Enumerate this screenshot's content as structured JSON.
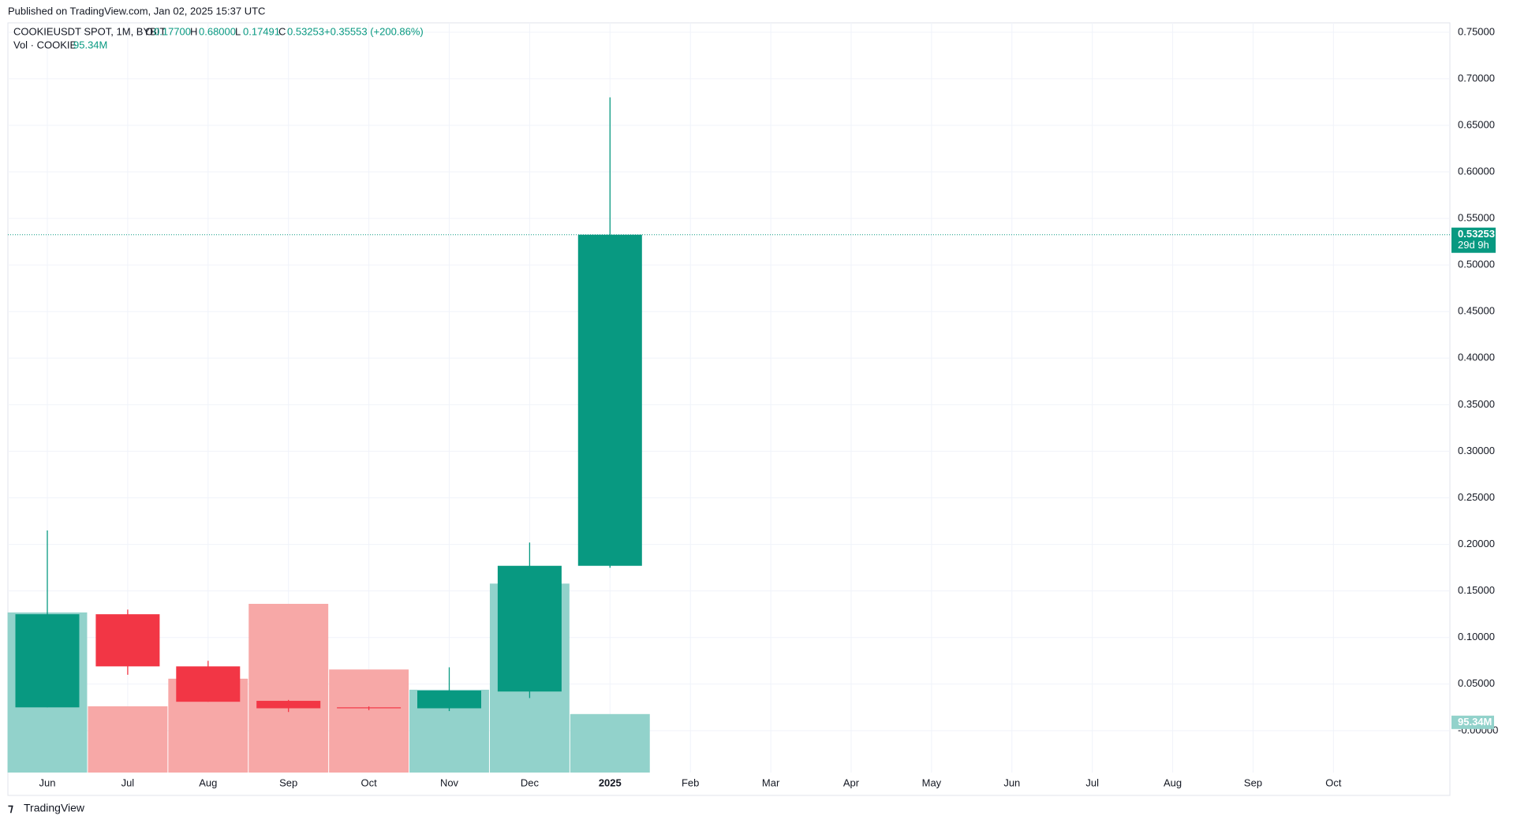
{
  "header": {
    "published": "Published on TradingView.com, Jan 02, 2025 15:37 UTC"
  },
  "legend": {
    "symbol": "COOKIEUSDT SPOT, 1M, BYBIT",
    "o_label": "O",
    "o": "0.17700",
    "h_label": "H",
    "h": "0.68000",
    "l_label": "L",
    "l": "0.17491",
    "c_label": "C",
    "c": "0.53253",
    "change": "+0.35553 (+200.86%)",
    "vol_name": "Vol · COOKIE",
    "vol": "95.34M"
  },
  "chart_data": {
    "type": "candlestick",
    "categories": [
      "Jun",
      "Jul",
      "Aug",
      "Sep",
      "Oct",
      "Nov",
      "Dec",
      "2025",
      "Feb",
      "Mar",
      "Apr",
      "May",
      "Jun",
      "Jul",
      "Aug",
      "Sep",
      "Oct"
    ],
    "open": [
      0.025,
      0.125,
      0.069,
      0.032,
      0.025,
      0.024,
      0.042,
      0.177,
      null,
      null,
      null,
      null,
      null,
      null,
      null,
      null,
      null
    ],
    "high": [
      0.215,
      0.13,
      0.075,
      0.033,
      0.026,
      0.068,
      0.202,
      0.68,
      null,
      null,
      null,
      null,
      null,
      null,
      null,
      null,
      null
    ],
    "low": [
      0.025,
      0.06,
      0.031,
      0.02,
      0.022,
      0.021,
      0.035,
      0.17491,
      null,
      null,
      null,
      null,
      null,
      null,
      null,
      null,
      null
    ],
    "close": [
      0.125,
      0.069,
      0.031,
      0.024,
      0.024,
      0.043,
      0.177,
      0.53253,
      null,
      null,
      null,
      null,
      null,
      null,
      null,
      null,
      null
    ],
    "volume": [
      261000000,
      108000000,
      153000000,
      275000000,
      168000000,
      135000000,
      308000000,
      95340000,
      null,
      null,
      null,
      null,
      null,
      null,
      null,
      null,
      null
    ],
    "volume_last_label": "95.34M",
    "last_price": 0.53253,
    "last_price_label": "0.53253",
    "countdown": "29d 9h",
    "up_color": "#089981",
    "down_color": "#f23645",
    "up_volume_color": "#92d2cb",
    "down_volume_color": "#f7a8a7",
    "ylim": [
      -0.045,
      0.76
    ],
    "vlim": [
      0,
      1222000000
    ],
    "yticks": [
      {
        "value": 0,
        "label": "-0.00000"
      },
      {
        "value": 0.05,
        "label": "0.05000"
      },
      {
        "value": 0.1,
        "label": "0.10000"
      },
      {
        "value": 0.15,
        "label": "0.15000"
      },
      {
        "value": 0.2,
        "label": "0.20000"
      },
      {
        "value": 0.25,
        "label": "0.25000"
      },
      {
        "value": 0.3,
        "label": "0.30000"
      },
      {
        "value": 0.35,
        "label": "0.35000"
      },
      {
        "value": 0.4,
        "label": "0.40000"
      },
      {
        "value": 0.45,
        "label": "0.45000"
      },
      {
        "value": 0.5,
        "label": "0.50000"
      },
      {
        "value": 0.55,
        "label": "0.55000"
      },
      {
        "value": 0.6,
        "label": "0.60000"
      },
      {
        "value": 0.65,
        "label": "0.65000"
      },
      {
        "value": 0.7,
        "label": "0.70000"
      },
      {
        "value": 0.75,
        "label": "0.75000"
      }
    ],
    "grid": true
  },
  "footer": {
    "brand": "TradingView"
  }
}
